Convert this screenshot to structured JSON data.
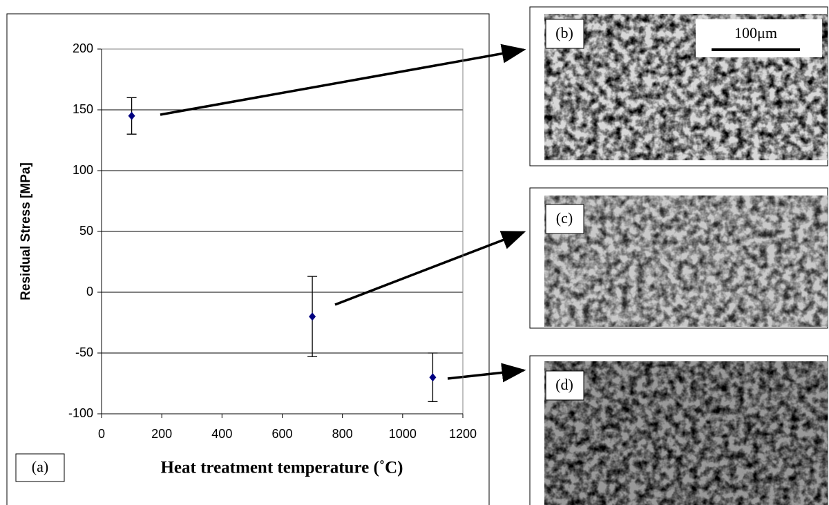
{
  "chart_data": {
    "type": "scatter",
    "x_label": "Heat treatment temperature (˚C)",
    "y_label": "Residual Stress [MPa]",
    "series": [
      {
        "color": "#000080",
        "x": [
          100,
          700,
          1100
        ],
        "values": [
          145,
          -20,
          -70
        ],
        "errors": [
          15,
          33,
          20
        ]
      }
    ],
    "xlim": [
      0,
      1200
    ],
    "xticks": [
      0,
      200,
      400,
      600,
      800,
      1000,
      1200
    ],
    "ylim": [
      -100,
      200
    ],
    "yticks": [
      -100,
      -50,
      0,
      50,
      100,
      150,
      200
    ],
    "grid": true,
    "annotations": [
      "(a)",
      "(b)",
      "(c)",
      "(d)"
    ],
    "scale_bar": "100μm"
  }
}
